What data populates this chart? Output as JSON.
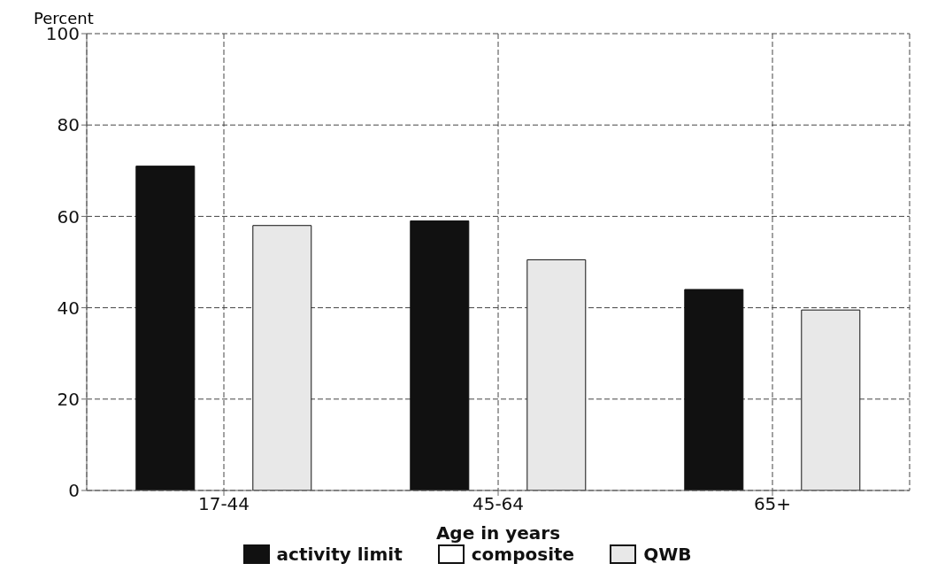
{
  "chart_data": {
    "type": "bar",
    "ylabel": "Percent",
    "xlabel": "Age in years",
    "categories": [
      "17-44",
      "45-64",
      "65+"
    ],
    "series": [
      {
        "name": "activity limit",
        "color": "#111111",
        "values": [
          71,
          59,
          44
        ]
      },
      {
        "name": "composite",
        "color": "#ffffff",
        "values": [
          null,
          null,
          null
        ]
      },
      {
        "name": "QWB",
        "color": "#e8e8e8",
        "values": [
          58,
          50.5,
          39.5
        ]
      }
    ],
    "ylim": [
      0,
      100
    ],
    "yticks": [
      0,
      20,
      40,
      60,
      80,
      100
    ],
    "grid": true,
    "legend": "bottom"
  }
}
